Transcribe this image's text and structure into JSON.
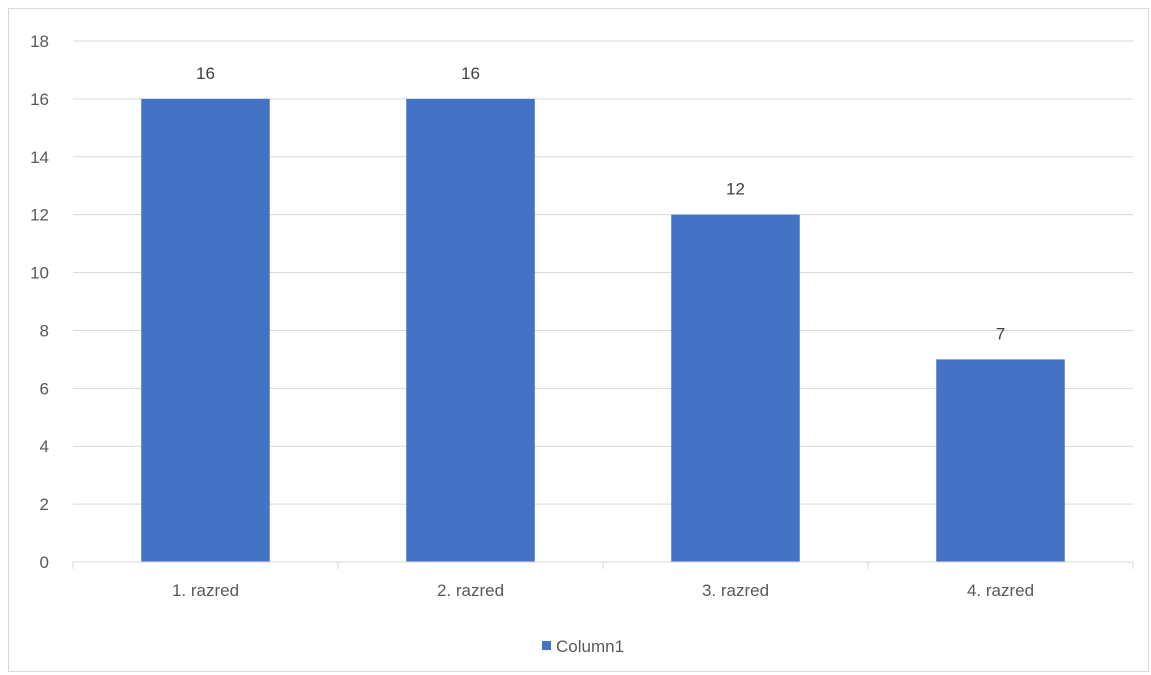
{
  "chart_data": {
    "type": "bar",
    "categories": [
      "1. razred",
      "2. razred",
      "3. razred",
      "4. razred"
    ],
    "series": [
      {
        "name": "Column1",
        "values": [
          16,
          16,
          12,
          7
        ],
        "color": "#4472C4"
      }
    ],
    "title": "",
    "xlabel": "",
    "ylabel": "",
    "ylim": [
      0,
      18
    ],
    "yticks": [
      0,
      2,
      4,
      6,
      8,
      10,
      12,
      14,
      16,
      18
    ],
    "grid": true,
    "data_labels": true,
    "legend": {
      "position": "bottom",
      "entries": [
        "Column1"
      ]
    }
  },
  "colors": {
    "bar": "#4472C4",
    "grid": "#d9d9d9",
    "axis_text": "#595959",
    "data_label_text": "#404040"
  }
}
